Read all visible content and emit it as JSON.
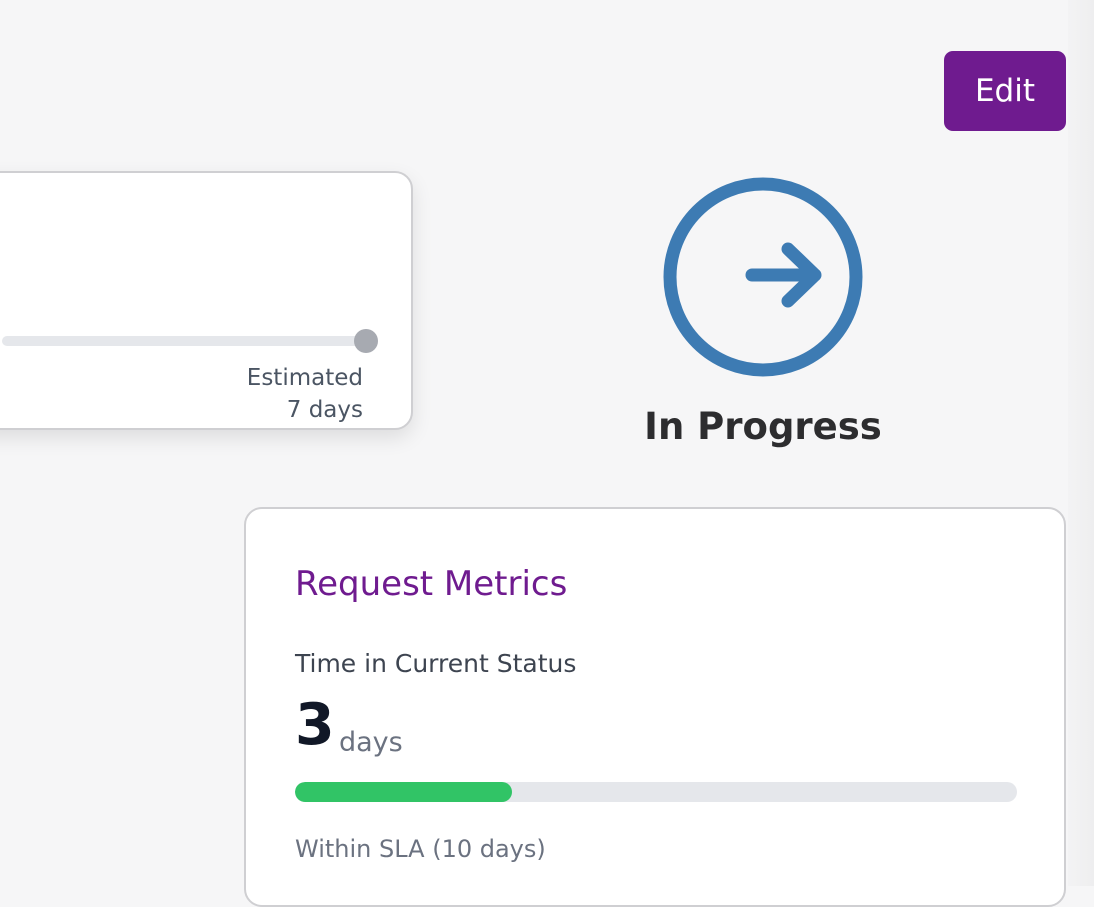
{
  "actions": {
    "edit_label": "Edit"
  },
  "timeline": {
    "estimated_label": "Estimated",
    "estimated_value": "7 days"
  },
  "status": {
    "label": "In Progress",
    "icon": "arrow-right-circle-icon",
    "color": "#3d7bb3"
  },
  "metrics": {
    "title": "Request Metrics",
    "time_label": "Time in Current Status",
    "value": "3",
    "unit": "days",
    "progress_fraction": 0.3,
    "sla_text": "Within SLA (10 days)"
  },
  "colors": {
    "accent": "#6f1b8f",
    "progress": "#31c466"
  }
}
